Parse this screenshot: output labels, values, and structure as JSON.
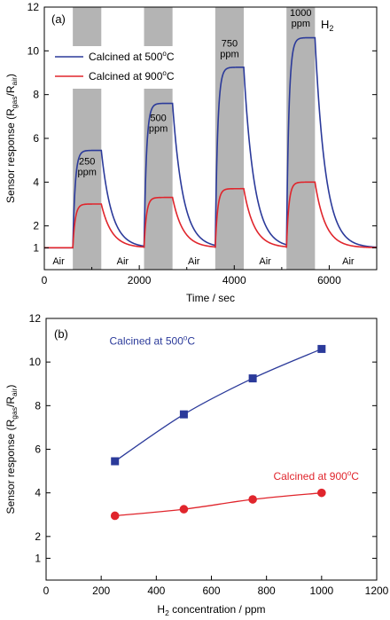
{
  "chart_data": [
    {
      "panel_label": "(a)",
      "type": "line",
      "xlabel": "Time / sec",
      "ylabel": "Sensor response (Rgas/Rair)",
      "ylabel_parts": {
        "main": "Sensor response (R",
        "sub1": "gas",
        "mid": "/R",
        "sub2": "air",
        "end": ")"
      },
      "xlim": [
        0,
        7000
      ],
      "ylim": [
        0,
        12
      ],
      "xticks": [
        0,
        2000,
        4000,
        6000
      ],
      "yticks": [
        1,
        2,
        4,
        6,
        8,
        10,
        12
      ],
      "gas_label": {
        "main": "H",
        "sub": "2"
      },
      "shaded_regions": [
        [
          600,
          1200
        ],
        [
          2100,
          2700
        ],
        [
          3600,
          4200
        ],
        [
          5100,
          5700
        ]
      ],
      "concentration_labels": [
        {
          "value": "250",
          "unit": "ppm",
          "x": 900,
          "y": 4.8
        },
        {
          "value": "500",
          "unit": "ppm",
          "x": 2400,
          "y": 6.8
        },
        {
          "value": "750",
          "unit": "ppm",
          "x": 3900,
          "y": 10.2
        },
        {
          "value": "1000",
          "unit": "ppm",
          "x": 5400,
          "y": 11.6
        }
      ],
      "air_labels": [
        {
          "text": "Air",
          "x": 300
        },
        {
          "text": "Air",
          "x": 1650
        },
        {
          "text": "Air",
          "x": 3150
        },
        {
          "text": "Air",
          "x": 4650
        },
        {
          "text": "Air",
          "x": 6400
        }
      ],
      "legend": {
        "position": "top-left"
      },
      "series": [
        {
          "name": "Calcined at 500oC",
          "name_parts": {
            "main": "Calcined at 500",
            "sup": "o",
            "end": "C"
          },
          "color": "#2b3a9a",
          "baseline": 1.0,
          "pulses": [
            {
              "start": 600,
              "end": 1200,
              "peak": 5.45
            },
            {
              "start": 2100,
              "end": 2700,
              "peak": 7.6
            },
            {
              "start": 3600,
              "end": 4200,
              "peak": 9.25
            },
            {
              "start": 5100,
              "end": 5700,
              "peak": 10.6
            }
          ]
        },
        {
          "name": "Calcined at 900oC",
          "name_parts": {
            "main": "Calcined at 900",
            "sup": "o",
            "end": "C"
          },
          "color": "#e0252c",
          "baseline": 1.0,
          "pulses": [
            {
              "start": 600,
              "end": 1200,
              "peak": 3.0
            },
            {
              "start": 2100,
              "end": 2700,
              "peak": 3.3
            },
            {
              "start": 3600,
              "end": 4200,
              "peak": 3.7
            },
            {
              "start": 5100,
              "end": 5700,
              "peak": 4.0
            }
          ]
        }
      ]
    },
    {
      "panel_label": "(b)",
      "type": "scatter",
      "xlabel": "H2 concentration / ppm",
      "xlabel_parts": {
        "main": "H",
        "sub": "2",
        "end": " concentration / ppm"
      },
      "ylabel": "Sensor response (Rgas/Rair)",
      "ylabel_parts": {
        "main": "Sensor response (R",
        "sub1": "gas",
        "mid": "/R",
        "sub2": "air",
        "end": ")"
      },
      "xlim": [
        0,
        1200
      ],
      "ylim": [
        0,
        12
      ],
      "xticks": [
        0,
        200,
        400,
        600,
        800,
        1000,
        1200
      ],
      "yticks": [
        1,
        2,
        4,
        6,
        8,
        10,
        12
      ],
      "series": [
        {
          "name": "Calcined at 500oC",
          "name_parts": {
            "main": "Calcined at 500",
            "sup": "o",
            "end": "C"
          },
          "color": "#2b3a9a",
          "marker": "square",
          "label_pos": {
            "x": 230,
            "y": 10.8
          },
          "x": [
            250,
            500,
            750,
            1000
          ],
          "y": [
            5.45,
            7.6,
            9.25,
            10.6
          ]
        },
        {
          "name": "Calcined at 900oC",
          "name_parts": {
            "main": "Calcined at 900",
            "sup": "o",
            "end": "C"
          },
          "color": "#e0252c",
          "marker": "circle",
          "label_pos": {
            "x": 825,
            "y": 4.6
          },
          "x": [
            250,
            500,
            750,
            1000
          ],
          "y": [
            2.95,
            3.25,
            3.7,
            4.0
          ]
        }
      ]
    }
  ]
}
